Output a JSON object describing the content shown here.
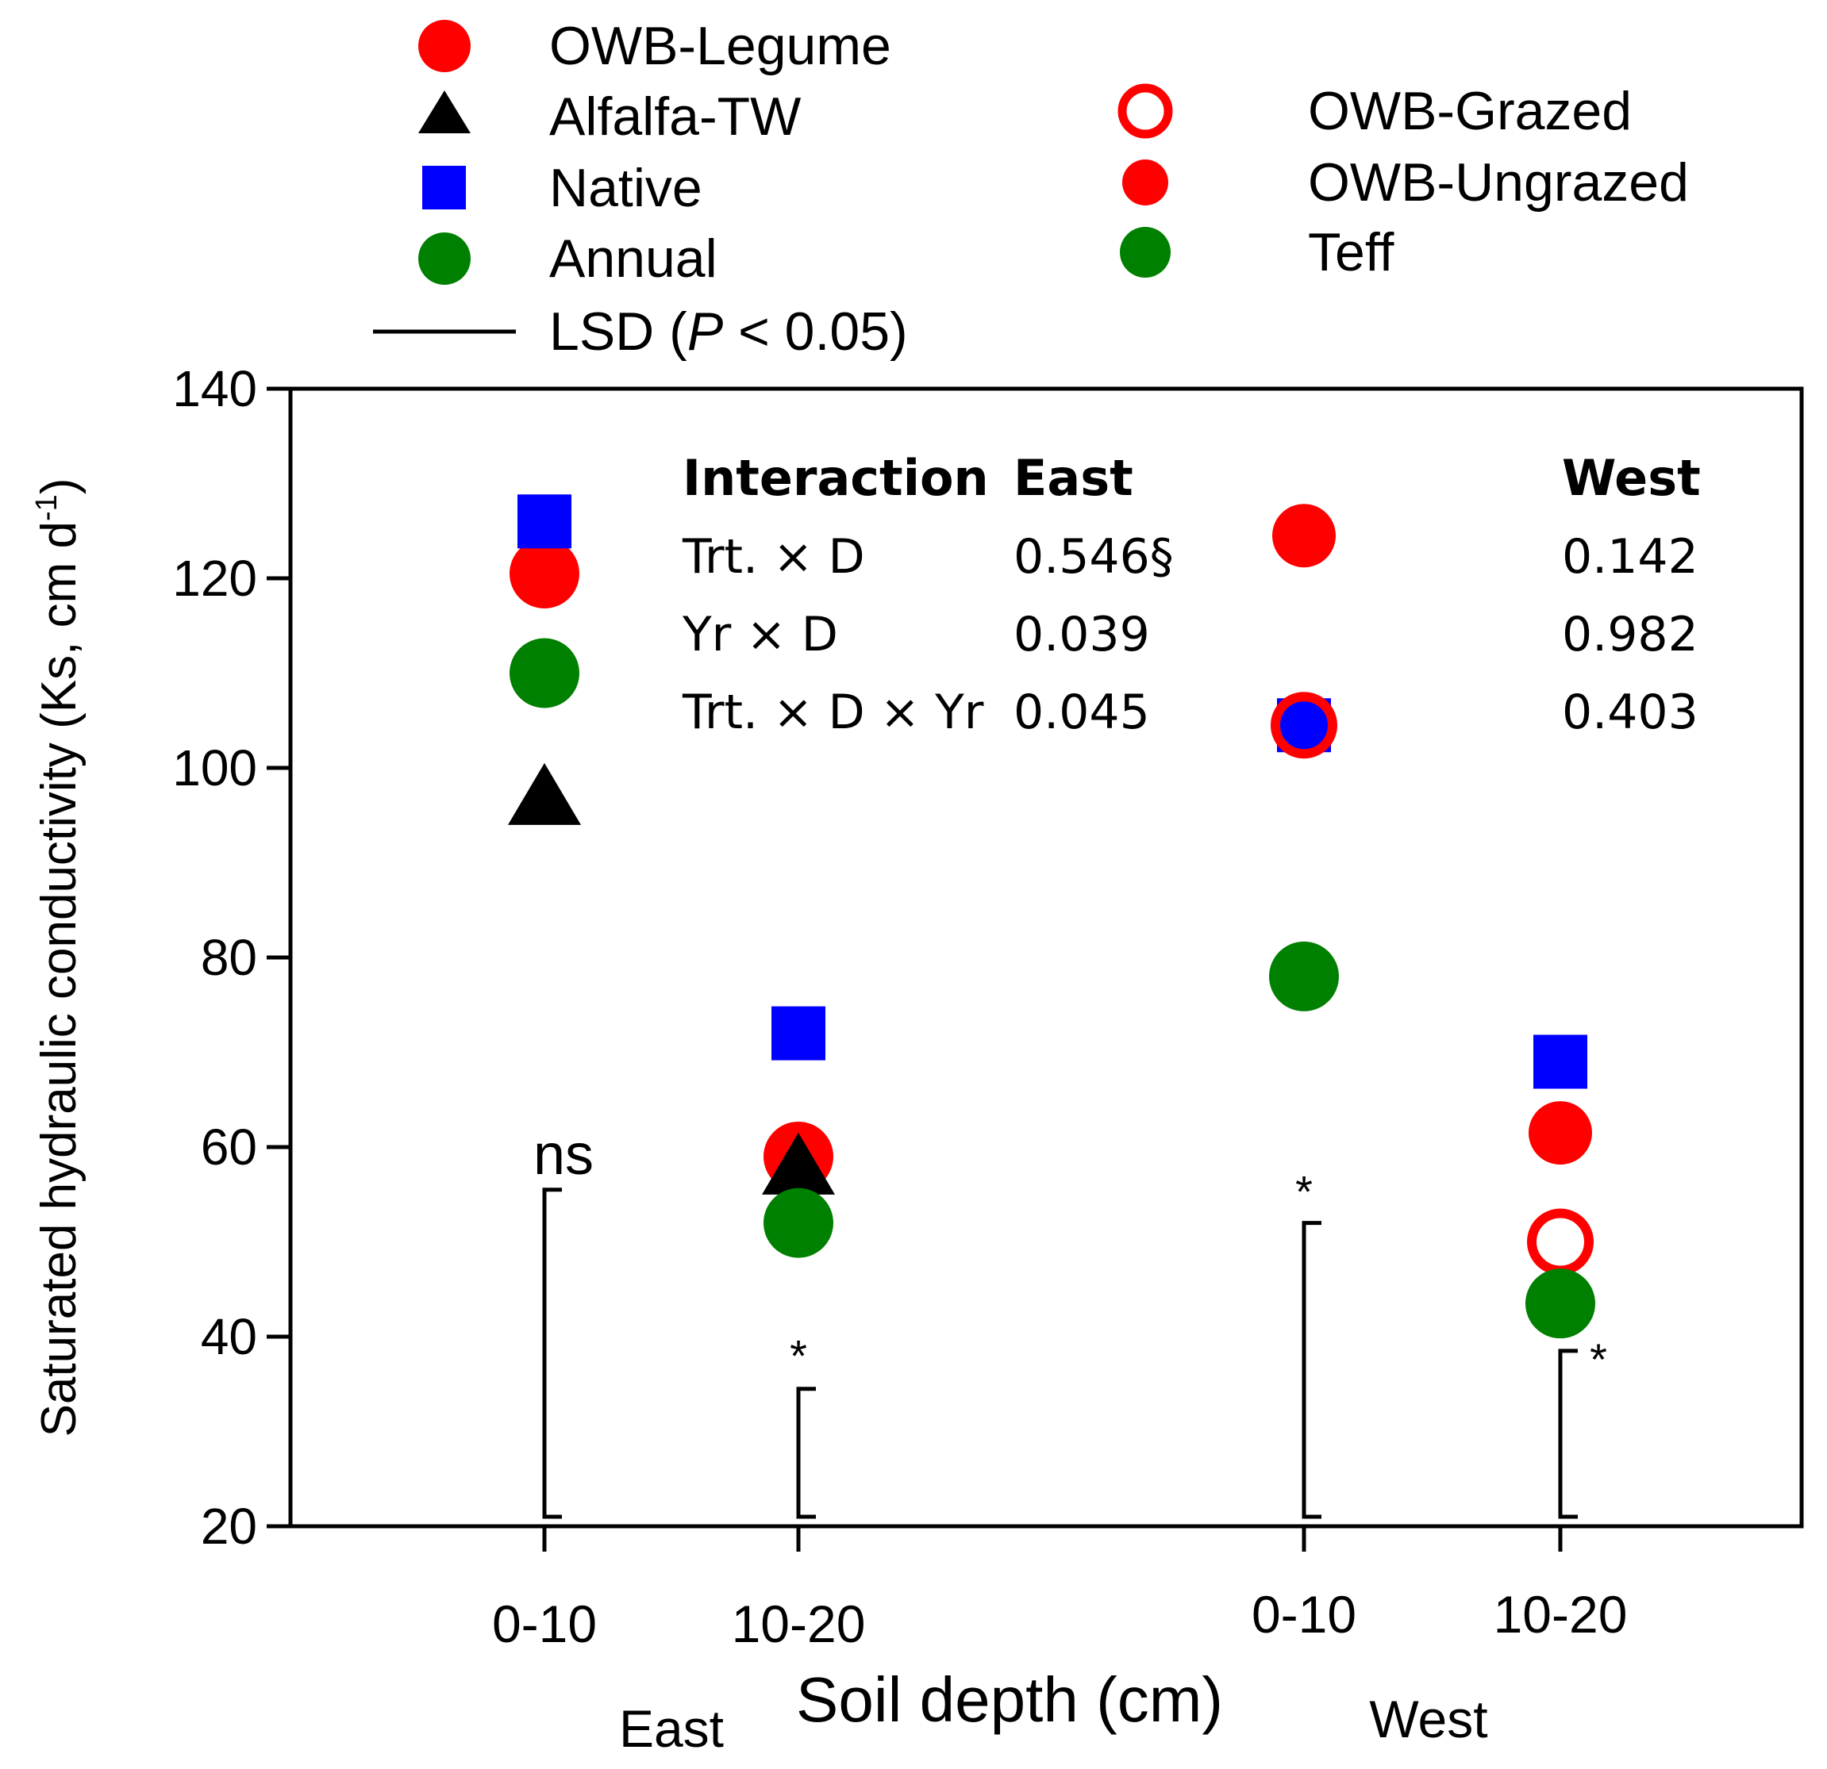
{
  "chart_data": {
    "type": "scatter",
    "title": "",
    "xlabel": "Soil depth (cm)",
    "ylabel": "Saturated hydraulic conductivity (Ks, cm d",
    "ylabel_sup": "-1",
    "ylabel_close": ")",
    "ylim": [
      20,
      140
    ],
    "yticks": [
      20,
      40,
      60,
      80,
      100,
      120,
      140
    ],
    "categories": [
      "East 0-10",
      "East 10-20",
      "West 0-10",
      "West 10-20"
    ],
    "tick_labels": [
      "0-10",
      "10-20",
      "0-10",
      "10-20"
    ],
    "group_labels": [
      "East",
      "West"
    ],
    "legend": {
      "left": [
        {
          "label": "OWB-Legume",
          "marker": "circle",
          "color": "#ff0000"
        },
        {
          "label": "Alfalfa-TW",
          "marker": "triangle",
          "color": "#000000"
        },
        {
          "label": "Native",
          "marker": "square",
          "color": "#0000ff"
        },
        {
          "label": "Annual",
          "marker": "circle",
          "color": "#008000"
        }
      ],
      "right": [
        {
          "label": "OWB-Grazed",
          "marker": "open-circle",
          "color": "#ff0000"
        },
        {
          "label": "OWB-Ungrazed",
          "marker": "circle",
          "color": "#ff0000"
        },
        {
          "label": "Teff",
          "marker": "circle",
          "color": "#008000"
        }
      ],
      "lsd": {
        "prefix": "LSD (",
        "italic": "P",
        "suffix": " < 0.05)"
      }
    },
    "series": [
      {
        "name": "OWB-Legume",
        "marker": "circle",
        "color": "#ff0000",
        "points": [
          {
            "cat": 0,
            "y": 120.5
          },
          {
            "cat": 1,
            "y": 59
          }
        ]
      },
      {
        "name": "Alfalfa-TW",
        "marker": "triangle",
        "color": "#000000",
        "points": [
          {
            "cat": 0,
            "y": 97
          },
          {
            "cat": 1,
            "y": 58
          }
        ]
      },
      {
        "name": "Native",
        "marker": "square",
        "color": "#0000ff",
        "points": [
          {
            "cat": 0,
            "y": 126
          },
          {
            "cat": 1,
            "y": 72
          },
          {
            "cat": 2,
            "y": 104.5
          },
          {
            "cat": 3,
            "y": 69
          }
        ]
      },
      {
        "name": "Annual",
        "marker": "circle",
        "color": "#008000",
        "points": [
          {
            "cat": 0,
            "y": 110
          },
          {
            "cat": 1,
            "y": 52
          }
        ]
      },
      {
        "name": "OWB-Grazed",
        "marker": "open-circle",
        "color": "#ff0000",
        "points": [
          {
            "cat": 2,
            "y": 104.5
          },
          {
            "cat": 3,
            "y": 50
          }
        ]
      },
      {
        "name": "OWB-Ungrazed",
        "marker": "circle",
        "color": "#ff0000",
        "points": [
          {
            "cat": 2,
            "y": 124.5
          },
          {
            "cat": 3,
            "y": 61.5
          }
        ]
      },
      {
        "name": "Teff",
        "marker": "circle",
        "color": "#008000",
        "points": [
          {
            "cat": 2,
            "y": 78
          },
          {
            "cat": 3,
            "y": 43.5
          }
        ]
      }
    ],
    "lsd_bars": [
      {
        "cat": 0,
        "low": 21,
        "high": 55.5,
        "label": "ns"
      },
      {
        "cat": 1,
        "low": 21,
        "high": 34.5,
        "label": "*"
      },
      {
        "cat": 2,
        "low": 21,
        "high": 52,
        "label": "*"
      },
      {
        "cat": 3,
        "low": 21,
        "high": 38.5,
        "label": "*"
      }
    ],
    "interaction_table": {
      "headers": [
        "Interaction",
        "East",
        "West"
      ],
      "rows": [
        {
          "term": "Trt. × D",
          "east": "0.546§",
          "west": "0.142"
        },
        {
          "term": "Yr × D",
          "east": "0.039",
          "west": "0.982"
        },
        {
          "term": "Trt. × D × Yr",
          "east": "0.045",
          "west": "0.403"
        }
      ]
    }
  }
}
